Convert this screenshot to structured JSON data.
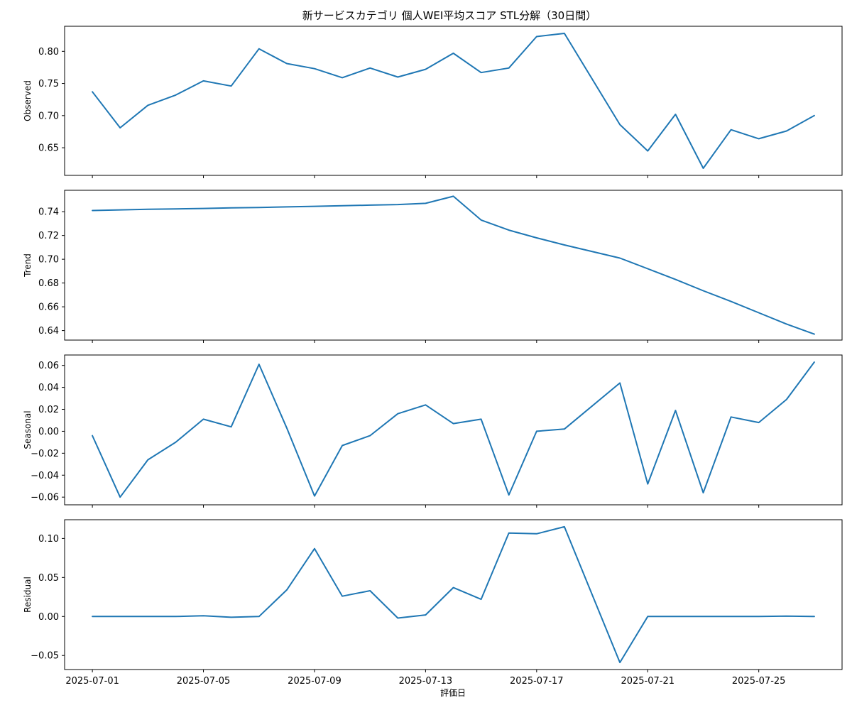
{
  "chart_data": {
    "type": "line",
    "title": "新サービスカテゴリ 個人WEI平均スコア STL分解（30日間）",
    "xlabel": "評価日",
    "line_color": "#1f77b4",
    "x": [
      "2025-07-01",
      "2025-07-02",
      "2025-07-03",
      "2025-07-04",
      "2025-07-05",
      "2025-07-06",
      "2025-07-07",
      "2025-07-08",
      "2025-07-09",
      "2025-07-10",
      "2025-07-11",
      "2025-07-12",
      "2025-07-13",
      "2025-07-14",
      "2025-07-15",
      "2025-07-16",
      "2025-07-17",
      "2025-07-18",
      "2025-07-20",
      "2025-07-21",
      "2025-07-22",
      "2025-07-23",
      "2025-07-24",
      "2025-07-25",
      "2025-07-26",
      "2025-07-27"
    ],
    "x_ticks": [
      "2025-07-01",
      "2025-07-05",
      "2025-07-09",
      "2025-07-13",
      "2025-07-17",
      "2025-07-21",
      "2025-07-25"
    ],
    "x_range": [
      "2025-06-30",
      "2025-07-28"
    ],
    "panels": [
      {
        "ylabel": "Observed",
        "ylim": [
          0.607,
          0.839
        ],
        "yticks": [
          "0.65",
          "0.70",
          "0.75",
          "0.80"
        ],
        "values": [
          0.737,
          0.681,
          0.716,
          0.732,
          0.754,
          0.746,
          0.804,
          0.781,
          0.773,
          0.759,
          0.774,
          0.76,
          0.772,
          0.797,
          0.767,
          0.774,
          0.823,
          0.828,
          0.686,
          0.645,
          0.702,
          0.618,
          0.678,
          0.664,
          0.676,
          0.7
        ]
      },
      {
        "ylabel": "Trend",
        "ylim": [
          0.632,
          0.758
        ],
        "yticks": [
          "0.64",
          "0.66",
          "0.68",
          "0.70",
          "0.72",
          "0.74"
        ],
        "values": [
          0.741,
          0.7415,
          0.742,
          0.7423,
          0.7427,
          0.7432,
          0.7435,
          0.744,
          0.7445,
          0.745,
          0.7455,
          0.746,
          0.747,
          0.753,
          0.733,
          0.7245,
          0.718,
          0.712,
          0.701,
          0.692,
          0.683,
          0.6735,
          0.6645,
          0.655,
          0.6455,
          0.637
        ]
      },
      {
        "ylabel": "Seasonal",
        "ylim": [
          -0.067,
          0.0695
        ],
        "yticks": [
          "−0.06",
          "−0.04",
          "−0.02",
          "0.00",
          "0.02",
          "0.04",
          "0.06"
        ],
        "values": [
          -0.004,
          -0.06,
          -0.026,
          -0.01,
          0.011,
          0.004,
          0.061,
          0.003,
          -0.059,
          -0.013,
          -0.004,
          0.016,
          0.024,
          0.007,
          0.011,
          -0.058,
          0.0,
          0.002,
          0.044,
          -0.048,
          0.019,
          -0.056,
          0.013,
          0.008,
          0.029,
          0.063
        ]
      },
      {
        "ylabel": "Residual",
        "ylim": [
          -0.068,
          0.124
        ],
        "yticks": [
          "−0.05",
          "0.00",
          "0.05",
          "0.10"
        ],
        "values": [
          0.0,
          0.0,
          0.0,
          0.0,
          0.001,
          -0.001,
          0.0,
          0.034,
          0.087,
          0.026,
          0.033,
          -0.002,
          0.002,
          0.037,
          0.022,
          0.107,
          0.106,
          0.115,
          -0.059,
          0.0,
          0.0,
          0.0,
          0.0,
          0.0,
          0.0005,
          0.0
        ]
      }
    ]
  }
}
